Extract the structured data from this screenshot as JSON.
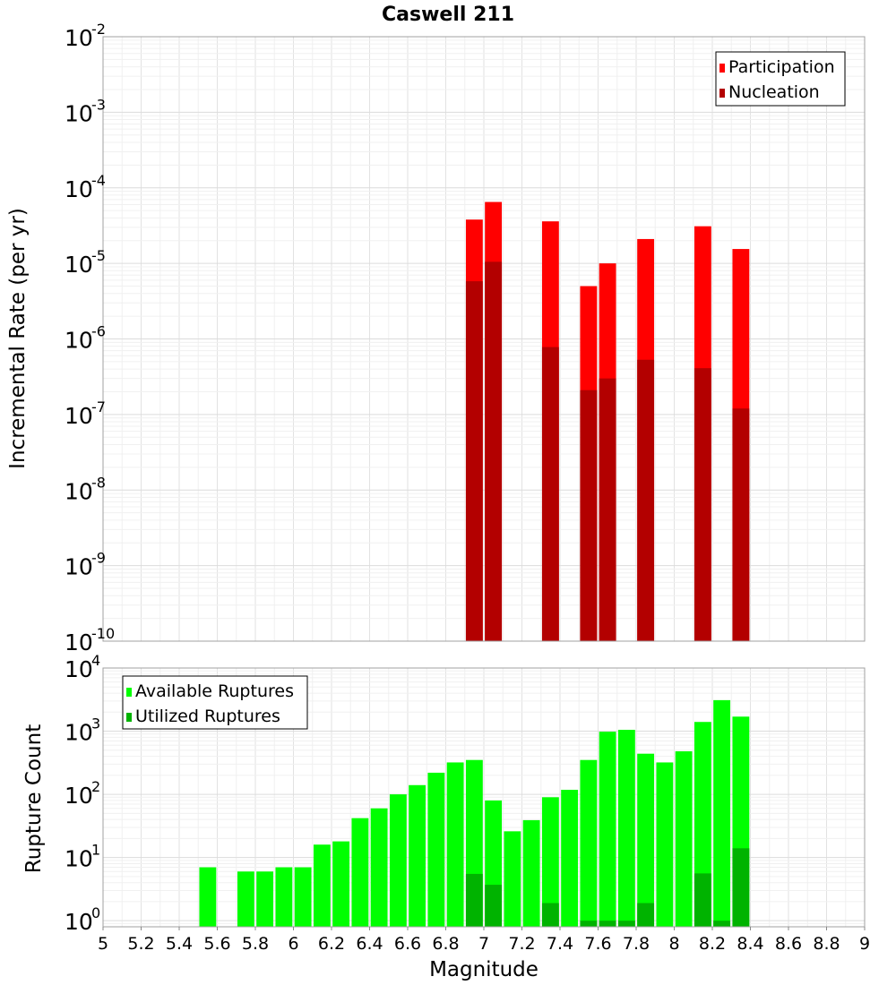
{
  "chart_data": [
    {
      "type": "bar",
      "title": "Caswell 211",
      "xlabel": "",
      "ylabel": "Incremental Rate (per yr)",
      "xlim": [
        5,
        9
      ],
      "ylim": [
        1e-10,
        0.01
      ],
      "yscale": "log",
      "grid": true,
      "legend_position": "top-right",
      "y_tick_exponents": [
        "-2",
        "-3",
        "-4",
        "-5",
        "-6",
        "-7",
        "-8",
        "-9",
        "-10"
      ],
      "y_tick_base": "10",
      "bin_width": 0.1,
      "series": [
        {
          "name": "Participation",
          "color": "#ff0000",
          "x": [
            6.95,
            7.05,
            7.35,
            7.55,
            7.65,
            7.85,
            8.15,
            8.35
          ],
          "values": [
            3.8e-05,
            6.5e-05,
            3.6e-05,
            5e-06,
            1e-05,
            2.1e-05,
            3.1e-05,
            1.55e-05
          ]
        },
        {
          "name": "Nucleation",
          "color": "#b30000",
          "x": [
            6.95,
            7.05,
            7.35,
            7.55,
            7.65,
            7.85,
            8.15,
            8.35
          ],
          "values": [
            5.8e-06,
            1.05e-05,
            7.8e-07,
            2.1e-07,
            3e-07,
            5.3e-07,
            4.1e-07,
            1.2e-07
          ]
        }
      ]
    },
    {
      "type": "bar",
      "title": "",
      "xlabel": "Magnitude",
      "ylabel": "Rupture Count",
      "xlim": [
        5,
        9
      ],
      "ylim": [
        0.8,
        10000
      ],
      "yscale": "log",
      "grid": true,
      "legend_position": "top-left",
      "x_tick_labels": [
        "5",
        "5.2",
        "5.4",
        "5.6",
        "5.8",
        "6",
        "6.2",
        "6.4",
        "6.6",
        "6.8",
        "7",
        "7.2",
        "7.4",
        "7.6",
        "7.8",
        "8",
        "8.2",
        "8.4",
        "8.6",
        "8.8",
        "9"
      ],
      "y_tick_exponents": [
        "4",
        "3",
        "2",
        "1",
        "0"
      ],
      "y_tick_base": "10",
      "bin_width": 0.1,
      "series": [
        {
          "name": "Available Ruptures",
          "color": "#00ff00",
          "x": [
            5.55,
            5.75,
            5.85,
            5.95,
            6.05,
            6.15,
            6.25,
            6.35,
            6.45,
            6.55,
            6.65,
            6.75,
            6.85,
            6.95,
            7.05,
            7.15,
            7.25,
            7.35,
            7.45,
            7.55,
            7.65,
            7.75,
            7.85,
            7.95,
            8.05,
            8.15,
            8.25,
            8.35
          ],
          "values": [
            7,
            6,
            6,
            7,
            7,
            16,
            18,
            42,
            60,
            100,
            140,
            220,
            320,
            350,
            80,
            26,
            39,
            90,
            118,
            350,
            980,
            1050,
            440,
            320,
            480,
            1400,
            3100,
            1700
          ]
        },
        {
          "name": "Utilized Ruptures",
          "color": "#00b300",
          "x": [
            6.95,
            7.05,
            7.35,
            7.55,
            7.65,
            7.75,
            7.85,
            8.15,
            8.25,
            8.35
          ],
          "values": [
            5.5,
            3.7,
            1.9,
            1,
            1,
            1,
            1.9,
            5.6,
            1,
            14
          ]
        }
      ]
    }
  ]
}
